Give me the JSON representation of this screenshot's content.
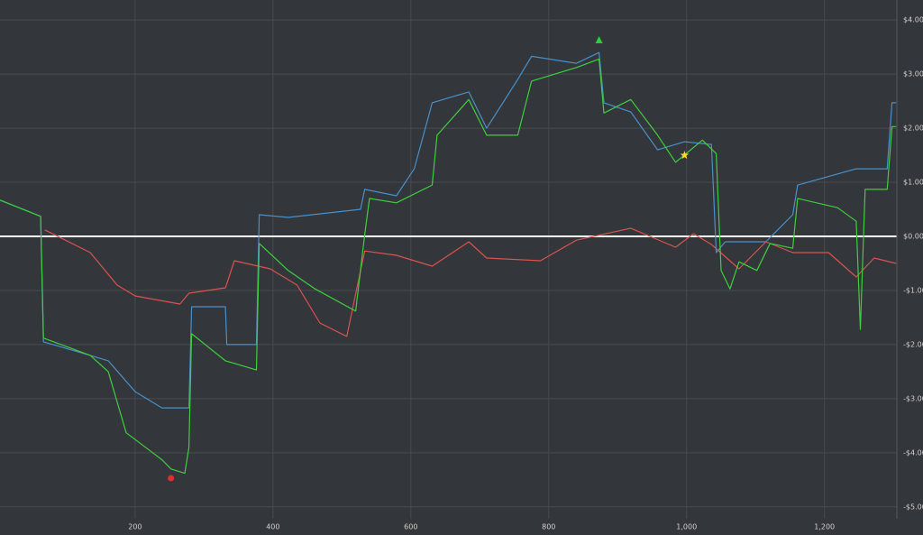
{
  "chart_data": {
    "type": "line",
    "xlim": [
      4,
      1305
    ],
    "ylim": [
      -5.22,
      4.37
    ],
    "xticks": [
      200,
      400,
      600,
      800,
      {
        "value": 1000,
        "label": "1,000"
      },
      {
        "value": 1200,
        "label": "1,200"
      }
    ],
    "yticks": [
      {
        "value": 4,
        "label": "$4.00"
      },
      {
        "value": 3,
        "label": "$3.00"
      },
      {
        "value": 2,
        "label": "$2.00"
      },
      {
        "value": 1,
        "label": "$1.00"
      },
      {
        "value": 0,
        "label": "$0.00"
      },
      {
        "value": -1,
        "label": "-$1.00"
      },
      {
        "value": -2,
        "label": "-$2.00"
      },
      {
        "value": -3,
        "label": "-$3.00"
      },
      {
        "value": -4,
        "label": "-$4.00"
      },
      {
        "value": -5,
        "label": "-$5.00"
      }
    ],
    "grid": true,
    "zero_line_color": "#ffffff",
    "series": [
      {
        "color": "#4a90c8",
        "x": [
          4,
          63,
          67,
          135,
          161,
          200,
          239,
          278,
          282,
          331,
          333,
          376,
          380,
          422,
          527,
          533,
          579,
          605,
          631,
          684,
          710,
          755,
          775,
          840,
          873,
          880,
          919,
          958,
          997,
          1036,
          1043,
          1056,
          1115,
          1154,
          1161,
          1246,
          1291,
          1298,
          1304
        ],
        "values": [
          0.67,
          0.37,
          -1.95,
          -2.2,
          -2.3,
          -2.87,
          -3.17,
          -3.17,
          -1.3,
          -1.3,
          -2.0,
          -2.0,
          0.4,
          0.35,
          0.5,
          0.87,
          0.75,
          1.25,
          2.47,
          2.67,
          2.0,
          2.9,
          3.33,
          3.2,
          3.4,
          2.47,
          2.3,
          1.6,
          1.75,
          1.7,
          -0.3,
          -0.1,
          -0.1,
          0.4,
          0.95,
          1.25,
          1.25,
          2.47,
          2.47
        ]
      },
      {
        "color": "#d9534f",
        "x": [
          69,
          135,
          174,
          200,
          265,
          278,
          331,
          344,
          396,
          435,
          468,
          507,
          533,
          579,
          631,
          684,
          710,
          788,
          840,
          919,
          984,
          1010,
          1036,
          1076,
          1115,
          1154,
          1206,
          1246,
          1272,
          1304
        ],
        "values": [
          0.12,
          -0.3,
          -0.9,
          -1.1,
          -1.25,
          -1.05,
          -0.95,
          -0.45,
          -0.6,
          -0.9,
          -1.6,
          -1.85,
          -0.27,
          -0.35,
          -0.55,
          -0.1,
          -0.4,
          -0.45,
          -0.07,
          0.15,
          -0.2,
          0.05,
          -0.15,
          -0.6,
          -0.1,
          -0.3,
          -0.3,
          -0.75,
          -0.4,
          -0.5
        ]
      },
      {
        "color": "#3ecf3e",
        "x": [
          4,
          63,
          67,
          135,
          161,
          187,
          239,
          252,
          272,
          278,
          282,
          331,
          376,
          380,
          422,
          461,
          520,
          533,
          540,
          579,
          631,
          638,
          684,
          710,
          755,
          775,
          840,
          873,
          880,
          919,
          958,
          984,
          1023,
          1043,
          1050,
          1063,
          1076,
          1102,
          1121,
          1154,
          1161,
          1219,
          1246,
          1252,
          1259,
          1291,
          1298,
          1304
        ],
        "values": [
          0.67,
          0.37,
          -1.88,
          -2.2,
          -2.5,
          -3.63,
          -4.13,
          -4.3,
          -4.38,
          -3.9,
          -1.8,
          -2.3,
          -2.47,
          -0.13,
          -0.63,
          -0.97,
          -1.38,
          0.03,
          0.7,
          0.62,
          0.95,
          1.87,
          2.53,
          1.87,
          1.87,
          2.87,
          3.12,
          3.28,
          2.28,
          2.53,
          1.87,
          1.37,
          1.78,
          1.53,
          -0.63,
          -0.97,
          -0.47,
          -0.63,
          -0.13,
          -0.22,
          0.7,
          0.53,
          0.28,
          -1.72,
          0.87,
          0.87,
          2.03,
          2.03
        ]
      }
    ],
    "markers": [
      {
        "x": 873,
        "y": 3.62,
        "color": "#2ecc40",
        "shape": "triangle"
      },
      {
        "x": 252,
        "y": -4.47,
        "color": "#e0302a",
        "shape": "circle"
      },
      {
        "x": 997,
        "y": 1.5,
        "color": "#ffe020",
        "shape": "star"
      }
    ]
  }
}
